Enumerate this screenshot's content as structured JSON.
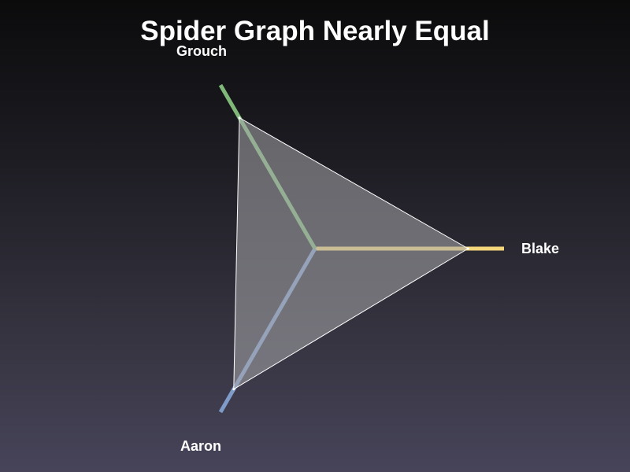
{
  "chart_data": {
    "type": "radar",
    "title": "Spider Graph Nearly Equal",
    "axes": [
      {
        "name": "Blake",
        "color": "#f4d77a",
        "value": 0.81,
        "max": 1
      },
      {
        "name": "Aaron",
        "color": "#7f9cc9",
        "value": 0.86,
        "max": 1
      },
      {
        "name": "Grouch",
        "color": "#7fb878",
        "value": 0.8,
        "max": 1
      }
    ],
    "polygon_fill": "#a7a7ac",
    "polygon_stroke": "#ffffff"
  }
}
